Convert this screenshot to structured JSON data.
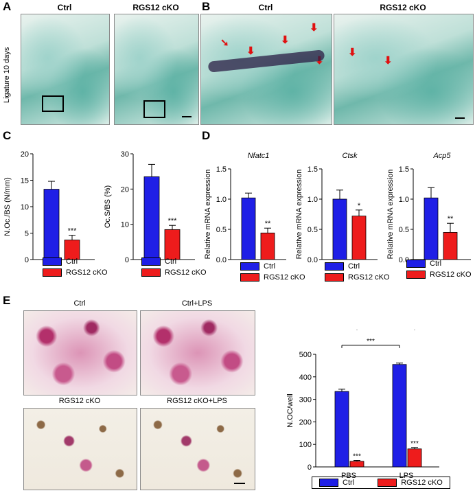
{
  "panels": {
    "a": {
      "letter": "A",
      "ctrl": "Ctrl",
      "cko": "RGS12 cKO",
      "side": "Ligature 10 days"
    },
    "b": {
      "letter": "B",
      "ctrl": "Ctrl",
      "cko": "RGS12 cKO"
    },
    "c": {
      "letter": "C"
    },
    "d": {
      "letter": "D"
    },
    "e": {
      "letter": "E",
      "img_titles": [
        "Ctrl",
        "Ctrl+LPS",
        "RGS12 cKO",
        "RGS12 cKO+LPS"
      ]
    }
  },
  "colors": {
    "ctrl": "#1f1fe6",
    "cko": "#ee1c1c"
  },
  "legend": {
    "ctrl": "Ctrl",
    "cko": "RGS12 cKO"
  },
  "chart_data": [
    {
      "id": "c1",
      "type": "bar",
      "ylabel": "N.Oc./BS (N/mm)",
      "ylim": [
        0,
        20
      ],
      "yticks": [
        "0",
        "5",
        "10",
        "15",
        "20"
      ],
      "series": [
        {
          "name": "Ctrl",
          "values": [
            13.3
          ],
          "err": [
            1.5
          ]
        },
        {
          "name": "RGS12 cKO",
          "values": [
            3.7
          ],
          "err": [
            0.9
          ]
        }
      ],
      "annotations": [
        "***"
      ]
    },
    {
      "id": "c2",
      "type": "bar",
      "ylabel": "Oc.S/BS (%)",
      "ylim": [
        0,
        30
      ],
      "yticks": [
        "0",
        "10",
        "20",
        "30"
      ],
      "series": [
        {
          "name": "Ctrl",
          "values": [
            23.5
          ],
          "err": [
            3.5
          ]
        },
        {
          "name": "RGS12 cKO",
          "values": [
            8.5
          ],
          "err": [
            1.2
          ]
        }
      ],
      "annotations": [
        "***"
      ]
    },
    {
      "id": "d1",
      "type": "bar",
      "title": "Nfatc1",
      "ylabel": "Relative mRNA expression",
      "ylim": [
        0,
        1.5
      ],
      "yticks": [
        "0.0",
        "0.5",
        "1.0",
        "1.5"
      ],
      "series": [
        {
          "name": "Ctrl",
          "values": [
            1.02
          ],
          "err": [
            0.08
          ]
        },
        {
          "name": "RGS12 cKO",
          "values": [
            0.44
          ],
          "err": [
            0.08
          ]
        }
      ],
      "annotations": [
        "**"
      ]
    },
    {
      "id": "d2",
      "type": "bar",
      "title": "Ctsk",
      "ylabel": "Relative mRNA expression",
      "ylim": [
        0,
        1.5
      ],
      "yticks": [
        "0.0",
        "0.5",
        "1.0",
        "1.5"
      ],
      "series": [
        {
          "name": "Ctrl",
          "values": [
            1.0
          ],
          "err": [
            0.15
          ]
        },
        {
          "name": "RGS12 cKO",
          "values": [
            0.72
          ],
          "err": [
            0.1
          ]
        }
      ],
      "annotations": [
        "*"
      ]
    },
    {
      "id": "d3",
      "type": "bar",
      "title": "Acp5",
      "ylabel": "Relative mRNA expression",
      "ylim": [
        0,
        1.5
      ],
      "yticks": [
        "0.0",
        "0.5",
        "1.0",
        "1.5"
      ],
      "series": [
        {
          "name": "Ctrl",
          "values": [
            1.02
          ],
          "err": [
            0.17
          ]
        },
        {
          "name": "RGS12 cKO",
          "values": [
            0.45
          ],
          "err": [
            0.15
          ]
        }
      ],
      "annotations": [
        "**"
      ]
    },
    {
      "id": "e",
      "type": "bar",
      "ylabel": "N.OC/well",
      "ylim": [
        0,
        500
      ],
      "yticks": [
        "0",
        "100",
        "200",
        "300",
        "400",
        "500"
      ],
      "categories": [
        "PBS",
        "LPS"
      ],
      "series": [
        {
          "name": "Ctrl",
          "values": [
            335,
            455
          ],
          "err": [
            10,
            6
          ]
        },
        {
          "name": "RGS12 cKO",
          "values": [
            25,
            80
          ],
          "err": [
            4,
            6
          ]
        }
      ],
      "annotations": [
        "***",
        "***"
      ],
      "brackets": [
        {
          "label": "***"
        },
        {
          "label": "**"
        }
      ]
    }
  ]
}
